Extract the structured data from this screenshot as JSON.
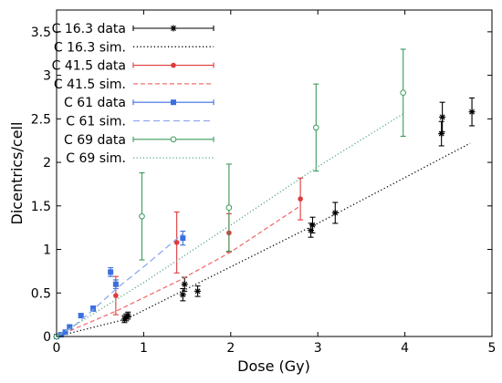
{
  "chart_data": {
    "type": "scatter",
    "xlabel": "Dose (Gy)",
    "ylabel": "Dicentrics/cell",
    "xlim": [
      0,
      5
    ],
    "ylim": [
      0,
      3.75
    ],
    "xticks": [
      0,
      1,
      2,
      3,
      4,
      5
    ],
    "yticks": [
      0,
      0.5,
      1,
      1.5,
      2,
      2.5,
      3,
      3.5
    ],
    "xtick_labels": [
      "0",
      "1",
      "2",
      "3",
      "4",
      "5"
    ],
    "ytick_labels": [
      "0",
      "0.5",
      "1",
      "1.5",
      "2",
      "2.5",
      "3",
      "3.5"
    ],
    "grid": false,
    "legend_position": "top-left",
    "series": [
      {
        "name": "C 16.3 data",
        "kind": "data",
        "color": "#000000",
        "marker": "star",
        "points": [
          {
            "x": 0.0,
            "y": 0.0,
            "err": 0.01
          },
          {
            "x": 0.78,
            "y": 0.2,
            "err": 0.04
          },
          {
            "x": 0.82,
            "y": 0.24,
            "err": 0.04
          },
          {
            "x": 0.8,
            "y": 0.22,
            "err": 0.04
          },
          {
            "x": 1.45,
            "y": 0.48,
            "err": 0.07
          },
          {
            "x": 1.47,
            "y": 0.6,
            "err": 0.08
          },
          {
            "x": 1.62,
            "y": 0.52,
            "err": 0.06
          },
          {
            "x": 2.92,
            "y": 1.22,
            "err": 0.08
          },
          {
            "x": 2.94,
            "y": 1.28,
            "err": 0.09
          },
          {
            "x": 3.2,
            "y": 1.42,
            "err": 0.12
          },
          {
            "x": 4.42,
            "y": 2.33,
            "err": 0.14
          },
          {
            "x": 4.43,
            "y": 2.52,
            "err": 0.17
          },
          {
            "x": 4.77,
            "y": 2.58,
            "err": 0.16
          }
        ]
      },
      {
        "name": "C 16.3 sim.",
        "kind": "sim",
        "color": "#000000",
        "dash": "1.2 2.6",
        "points": [
          {
            "x": 0.0,
            "y": 0.0
          },
          {
            "x": 0.8,
            "y": 0.2
          },
          {
            "x": 1.5,
            "y": 0.55
          },
          {
            "x": 2.2,
            "y": 0.9
          },
          {
            "x": 3.0,
            "y": 1.3
          },
          {
            "x": 3.8,
            "y": 1.72
          },
          {
            "x": 4.75,
            "y": 2.22
          }
        ]
      },
      {
        "name": "C 41.5 data",
        "kind": "data",
        "color": "#e03a3a",
        "marker": "filled-circle",
        "points": [
          {
            "x": 0.0,
            "y": 0.0,
            "err": 0.01
          },
          {
            "x": 0.68,
            "y": 0.47,
            "err": 0.22
          },
          {
            "x": 1.38,
            "y": 1.08,
            "err": 0.35
          },
          {
            "x": 1.98,
            "y": 1.19,
            "err": 0.22
          },
          {
            "x": 2.8,
            "y": 1.58,
            "err": 0.24
          }
        ]
      },
      {
        "name": "C 41.5 sim.",
        "kind": "sim",
        "color": "#f07070",
        "dash": "5 3",
        "points": [
          {
            "x": 0.0,
            "y": 0.0
          },
          {
            "x": 0.7,
            "y": 0.3
          },
          {
            "x": 1.4,
            "y": 0.64
          },
          {
            "x": 2.0,
            "y": 0.97
          },
          {
            "x": 2.8,
            "y": 1.5
          }
        ]
      },
      {
        "name": "C 61 data",
        "kind": "data",
        "color": "#3a6fe0",
        "marker": "filled-square",
        "points": [
          {
            "x": 0.0,
            "y": 0.0,
            "err": 0.01
          },
          {
            "x": 0.05,
            "y": 0.02,
            "err": 0.01
          },
          {
            "x": 0.1,
            "y": 0.05,
            "err": 0.01
          },
          {
            "x": 0.15,
            "y": 0.11,
            "err": 0.02
          },
          {
            "x": 0.28,
            "y": 0.24,
            "err": 0.02
          },
          {
            "x": 0.42,
            "y": 0.32,
            "err": 0.03
          },
          {
            "x": 0.62,
            "y": 0.74,
            "err": 0.05
          },
          {
            "x": 0.68,
            "y": 0.6,
            "err": 0.05
          },
          {
            "x": 1.45,
            "y": 1.13,
            "err": 0.08
          }
        ]
      },
      {
        "name": "C 61 sim.",
        "kind": "sim",
        "color": "#8fa8ee",
        "dash": "7 4",
        "points": [
          {
            "x": 0.0,
            "y": 0.0
          },
          {
            "x": 0.2,
            "y": 0.12
          },
          {
            "x": 0.4,
            "y": 0.29
          },
          {
            "x": 0.7,
            "y": 0.56
          },
          {
            "x": 1.0,
            "y": 0.8
          },
          {
            "x": 1.45,
            "y": 1.18
          }
        ]
      },
      {
        "name": "C 69 data",
        "kind": "data",
        "color": "#3a9a5a",
        "marker": "open-circle",
        "points": [
          {
            "x": 0.0,
            "y": 0.0,
            "err": 0.01
          },
          {
            "x": 0.98,
            "y": 1.38,
            "err": 0.5
          },
          {
            "x": 1.98,
            "y": 1.48,
            "err": 0.5
          },
          {
            "x": 2.98,
            "y": 2.4,
            "err": 0.5
          },
          {
            "x": 3.98,
            "y": 2.8,
            "err": 0.5
          }
        ]
      },
      {
        "name": "C 69 sim.",
        "kind": "sim",
        "color": "#5aa88a",
        "dash": "1.2 2.4",
        "points": [
          {
            "x": 0.0,
            "y": 0.0
          },
          {
            "x": 1.0,
            "y": 0.62
          },
          {
            "x": 2.0,
            "y": 1.28
          },
          {
            "x": 3.0,
            "y": 1.95
          },
          {
            "x": 4.0,
            "y": 2.57
          }
        ]
      }
    ]
  }
}
